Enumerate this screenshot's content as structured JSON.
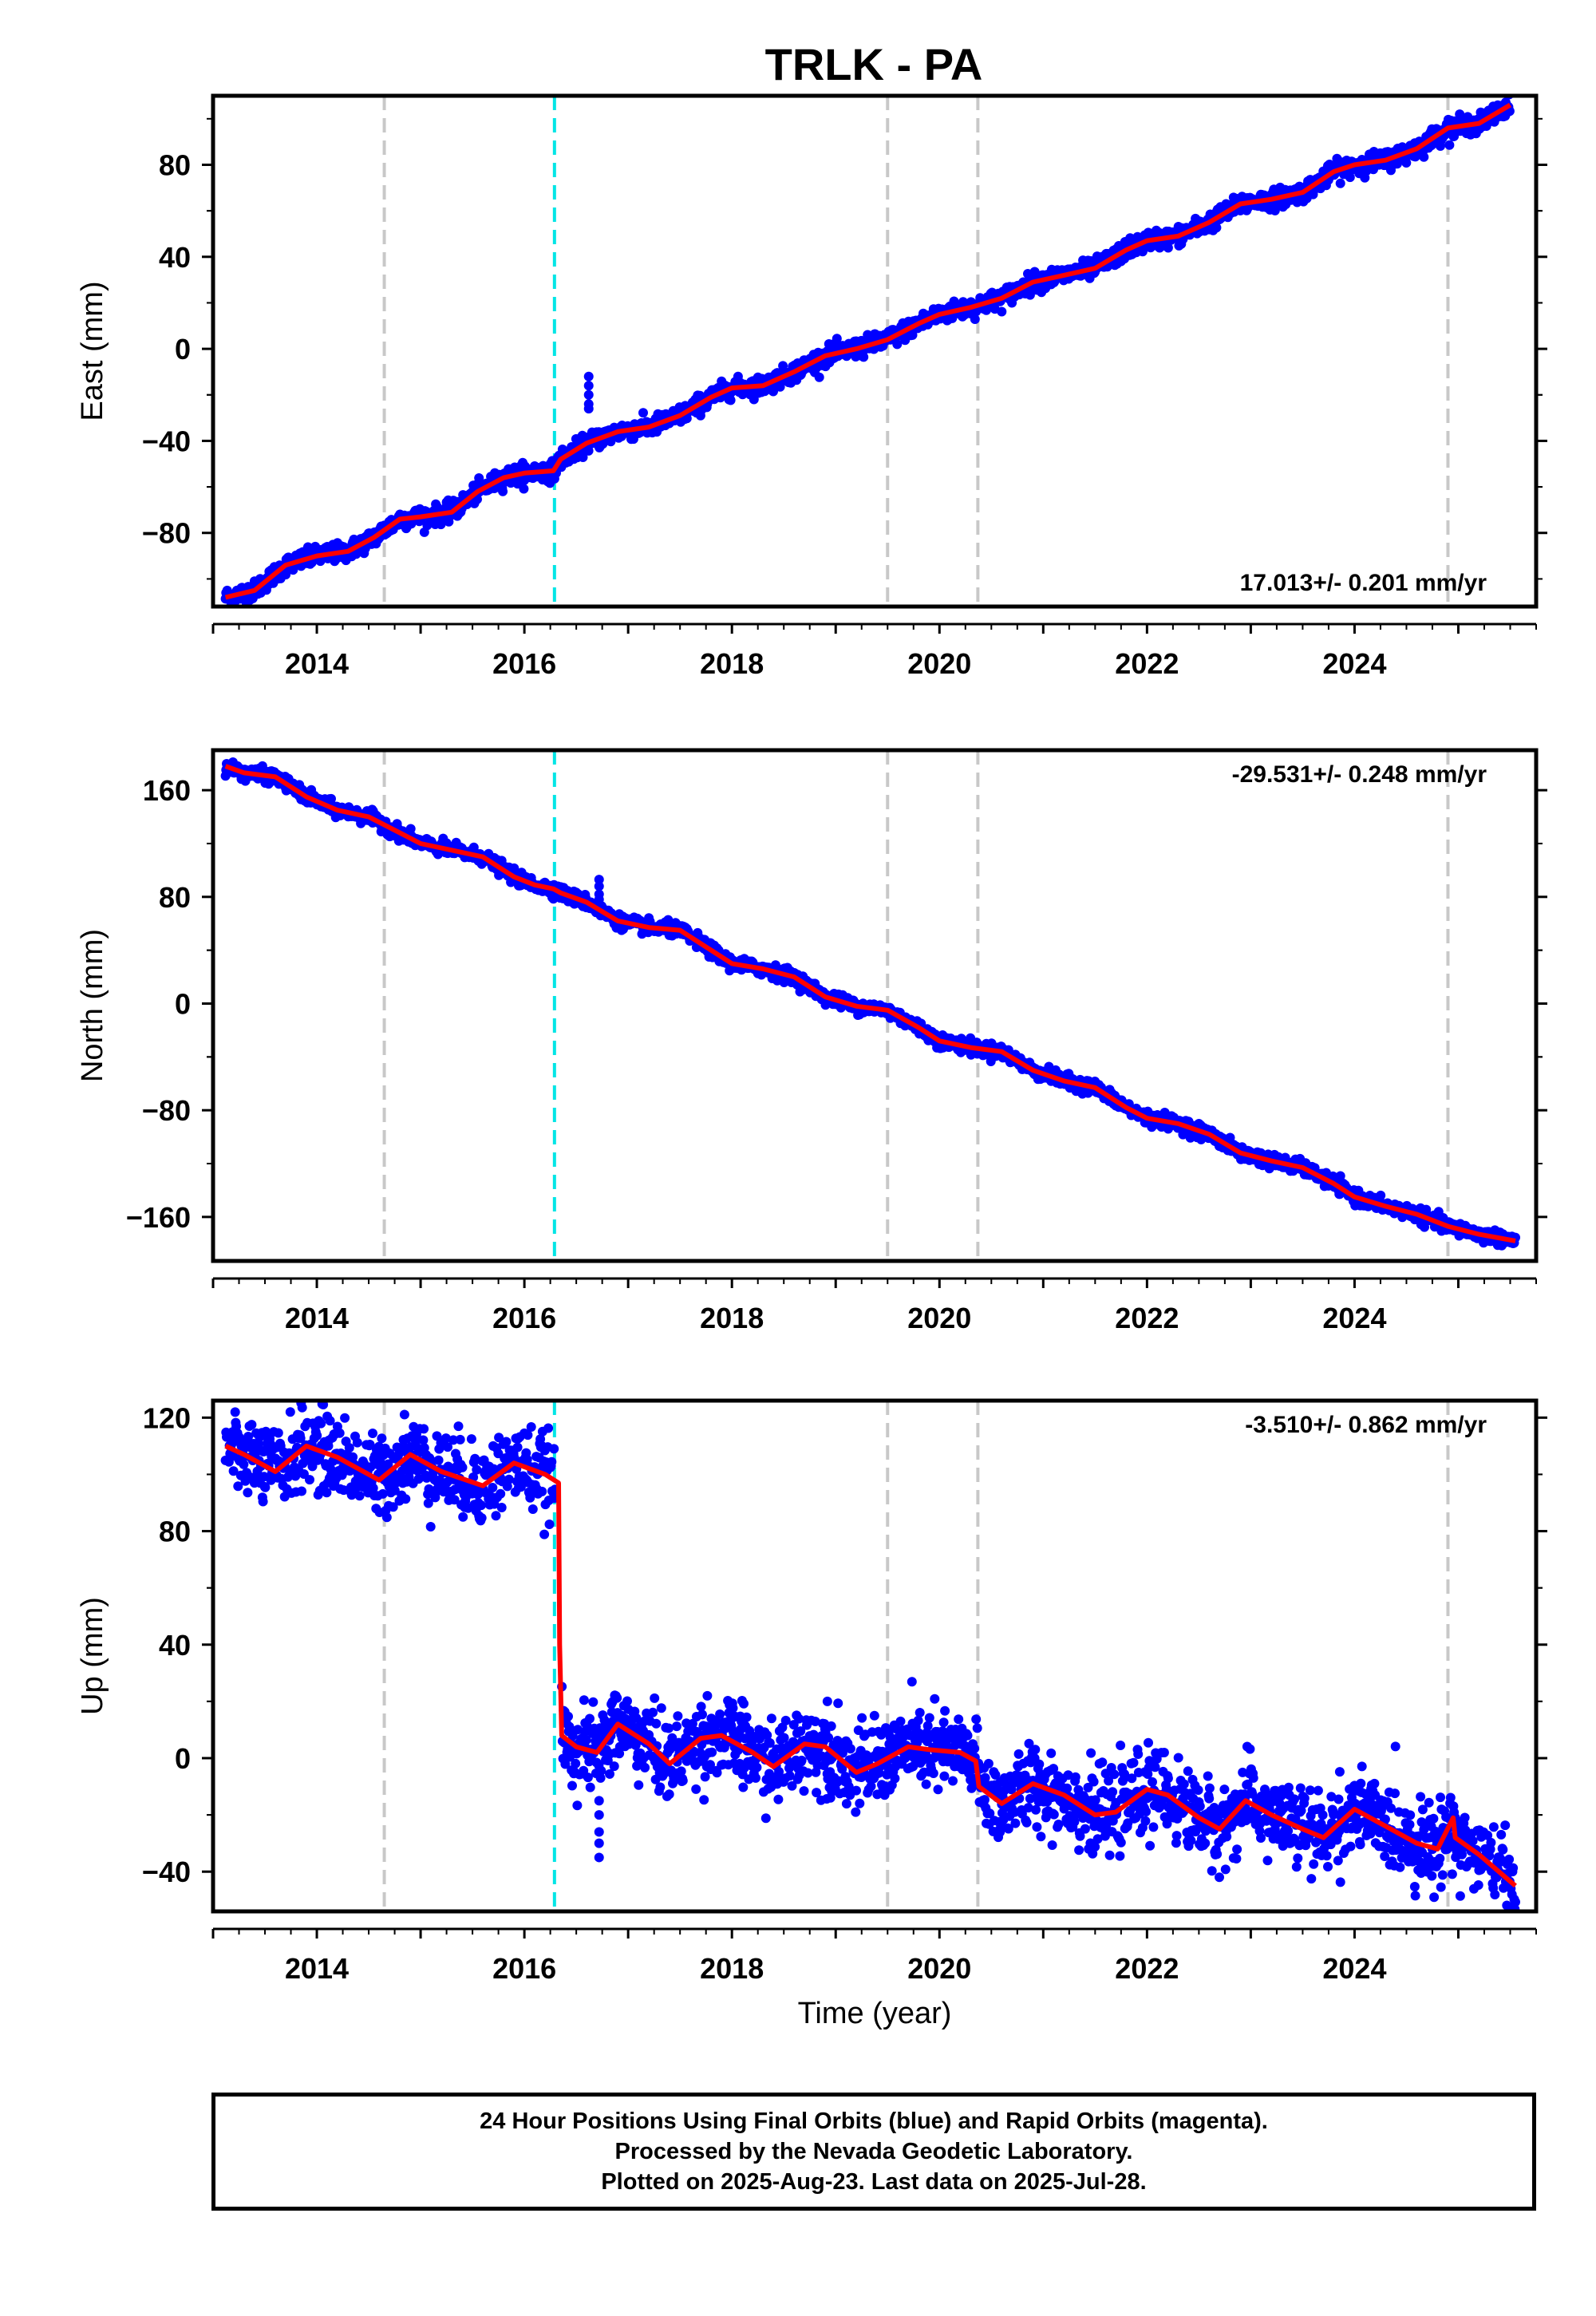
{
  "figure": {
    "title": "TRLK - PA",
    "footer_lines": [
      "24 Hour Positions Using Final Orbits (blue) and Rapid Orbits (magenta).",
      "Processed by the Nevada Geodetic Laboratory.",
      "Plotted on 2025-Aug-23. Last data on 2025-Jul-28."
    ]
  },
  "colors": {
    "data_points": "#0000ff",
    "model_line": "#ff0000",
    "equipment_change_lines": "#c8c8c8",
    "earthquake_line": "#00e5e5",
    "frame": "#000000"
  },
  "chart_data": [
    {
      "type": "scatter",
      "ylabel": "East (mm)",
      "xlabel": "",
      "xlim": [
        2013.0,
        2025.75
      ],
      "ylim": [
        -112,
        110
      ],
      "yticks": [
        -80,
        -40,
        0,
        40,
        80
      ],
      "xticks": [
        2014,
        2016,
        2018,
        2020,
        2022,
        2024
      ],
      "rate_text": "17.013+/- 0.201 mm/yr",
      "rate_position": "bottom-right",
      "model_curve": {
        "x": [
          2013.12,
          2013.4,
          2013.7,
          2014.0,
          2014.3,
          2014.55,
          2014.8,
          2015.0,
          2015.3,
          2015.55,
          2015.8,
          2016.0,
          2016.28,
          2016.35,
          2016.6,
          2016.9,
          2017.2,
          2017.5,
          2017.8,
          2018.0,
          2018.3,
          2018.6,
          2018.9,
          2019.2,
          2019.5,
          2019.8,
          2020.0,
          2020.3,
          2020.6,
          2020.9,
          2021.2,
          2021.5,
          2021.8,
          2022.0,
          2022.3,
          2022.6,
          2022.9,
          2023.2,
          2023.5,
          2023.8,
          2024.0,
          2024.3,
          2024.6,
          2024.9,
          2025.2,
          2025.5
        ],
        "y": [
          -108,
          -105,
          -94,
          -90,
          -88,
          -82,
          -74,
          -73,
          -71,
          -62,
          -56,
          -54,
          -53,
          -48,
          -41,
          -36,
          -34,
          -29,
          -21,
          -17,
          -16,
          -10,
          -3,
          0,
          4,
          11,
          15,
          18,
          22,
          29,
          32,
          35,
          43,
          47,
          49,
          55,
          63,
          65,
          68,
          77,
          80,
          82,
          87,
          96,
          98,
          106
        ]
      },
      "outliers": [
        {
          "x": 2016.62,
          "y": -12
        },
        {
          "x": 2016.62,
          "y": -16
        },
        {
          "x": 2016.62,
          "y": -20
        },
        {
          "x": 2016.62,
          "y": -24
        },
        {
          "x": 2016.62,
          "y": -26
        }
      ],
      "scatter_noise_mm": 2.0
    },
    {
      "type": "scatter",
      "ylabel": "North (mm)",
      "xlabel": "",
      "xlim": [
        2013.0,
        2025.75
      ],
      "ylim": [
        -193,
        190
      ],
      "yticks": [
        -160,
        -80,
        0,
        80,
        160
      ],
      "xticks": [
        2014,
        2016,
        2018,
        2020,
        2022,
        2024
      ],
      "rate_text": "-29.531+/- 0.248 mm/yr",
      "rate_position": "top-right",
      "model_curve": {
        "x": [
          2013.12,
          2013.3,
          2013.6,
          2013.9,
          2014.2,
          2014.5,
          2014.8,
          2015.0,
          2015.3,
          2015.6,
          2015.9,
          2016.1,
          2016.28,
          2016.35,
          2016.6,
          2016.9,
          2017.2,
          2017.5,
          2017.8,
          2018.0,
          2018.3,
          2018.6,
          2018.9,
          2019.2,
          2019.5,
          2019.8,
          2020.0,
          2020.3,
          2020.6,
          2020.9,
          2021.2,
          2021.5,
          2021.8,
          2022.0,
          2022.3,
          2022.6,
          2022.9,
          2023.2,
          2023.5,
          2023.8,
          2024.0,
          2024.3,
          2024.6,
          2024.9,
          2025.2,
          2025.55
        ],
        "y": [
          178,
          173,
          170,
          155,
          145,
          140,
          128,
          120,
          115,
          110,
          95,
          89,
          86,
          83,
          76,
          62,
          57,
          55,
          40,
          30,
          26,
          20,
          5,
          -2,
          -5,
          -18,
          -28,
          -33,
          -36,
          -50,
          -58,
          -63,
          -78,
          -86,
          -90,
          -98,
          -112,
          -118,
          -123,
          -135,
          -145,
          -152,
          -158,
          -167,
          -173,
          -178
        ]
      },
      "outliers": [
        {
          "x": 2016.72,
          "y": 93
        },
        {
          "x": 2016.72,
          "y": 88
        },
        {
          "x": 2016.72,
          "y": 82
        },
        {
          "x": 2016.72,
          "y": 78
        },
        {
          "x": 2017.99,
          "y": 32
        },
        {
          "x": 2018.8,
          "y": 15
        }
      ],
      "scatter_noise_mm": 2.5
    },
    {
      "type": "scatter",
      "ylabel": "Up (mm)",
      "xlabel": "Time (year)",
      "xlim": [
        2013.0,
        2025.75
      ],
      "ylim": [
        -54,
        126
      ],
      "yticks": [
        -40,
        0,
        40,
        80,
        120
      ],
      "xticks": [
        2014,
        2016,
        2018,
        2020,
        2022,
        2024
      ],
      "rate_text": "-3.510+/- 0.862 mm/yr",
      "rate_position": "top-right",
      "model_curve": {
        "x": [
          2013.12,
          2013.3,
          2013.6,
          2013.9,
          2014.2,
          2014.6,
          2014.9,
          2015.2,
          2015.6,
          2015.9,
          2016.2,
          2016.33,
          2016.34,
          2016.36,
          2016.5,
          2016.7,
          2016.9,
          2017.2,
          2017.4,
          2017.7,
          2017.9,
          2018.2,
          2018.4,
          2018.7,
          2018.9,
          2019.2,
          2019.4,
          2019.7,
          2019.9,
          2020.2,
          2020.35,
          2020.38,
          2020.6,
          2020.9,
          2021.2,
          2021.5,
          2021.7,
          2022.0,
          2022.2,
          2022.5,
          2022.7,
          2022.95,
          2023.2,
          2023.5,
          2023.7,
          2024.0,
          2024.3,
          2024.6,
          2024.8,
          2024.95,
          2024.97,
          2025.2,
          2025.55
        ],
        "y": [
          110,
          107,
          101,
          110,
          106,
          98,
          107,
          101,
          96,
          104,
          100,
          97,
          40,
          8,
          4,
          2,
          12,
          5,
          -2,
          7,
          8,
          2,
          -3,
          5,
          4,
          -5,
          -2,
          4,
          3,
          2,
          -1,
          -10,
          -16,
          -9,
          -13,
          -20,
          -19,
          -11,
          -13,
          -21,
          -25,
          -15,
          -20,
          -25,
          -28,
          -18,
          -24,
          -30,
          -32,
          -21,
          -28,
          -34,
          -45
        ]
      },
      "outliers": [
        {
          "x": 2016.72,
          "y": -15
        },
        {
          "x": 2016.72,
          "y": -20
        },
        {
          "x": 2016.72,
          "y": -26
        },
        {
          "x": 2016.72,
          "y": -30
        },
        {
          "x": 2016.72,
          "y": -35
        },
        {
          "x": 2018.92,
          "y": 20
        },
        {
          "x": 2018.95,
          "y": -14
        }
      ],
      "scatter_noise_mm": 7.0
    }
  ],
  "event_lines": {
    "equipment_changes": [
      2014.65,
      2019.5,
      2020.37,
      2024.9
    ],
    "earthquake": [
      2016.29
    ]
  }
}
